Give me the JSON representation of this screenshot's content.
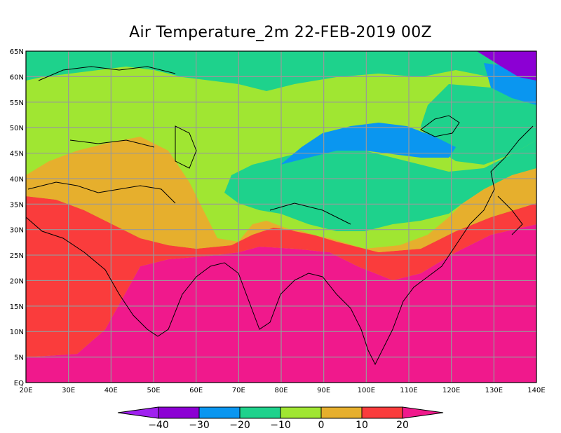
{
  "title": "Air Temperature_2m 22-FEB-2019 00Z",
  "map": {
    "lat_labels": [
      "65N",
      "60N",
      "55N",
      "50N",
      "45N",
      "40N",
      "35N",
      "30N",
      "25N",
      "20N",
      "15N",
      "10N",
      "5N",
      "EQ"
    ],
    "lon_labels": [
      "20E",
      "30E",
      "40E",
      "50E",
      "60E",
      "70E",
      "80E",
      "90E",
      "100E",
      "110E",
      "120E",
      "130E",
      "140E"
    ],
    "lat_range": [
      0,
      65
    ],
    "lon_range": [
      20,
      140
    ],
    "grid": true
  },
  "colorbar": {
    "ticks": [
      "-40",
      "-30",
      "-20",
      "-10",
      "0",
      "10",
      "20"
    ],
    "colors": [
      "#a020f0",
      "#8c00d4",
      "#0a96f0",
      "#1ed28c",
      "#a0e632",
      "#e6af2d",
      "#fa3c3c",
      "#f0198c"
    ]
  }
}
